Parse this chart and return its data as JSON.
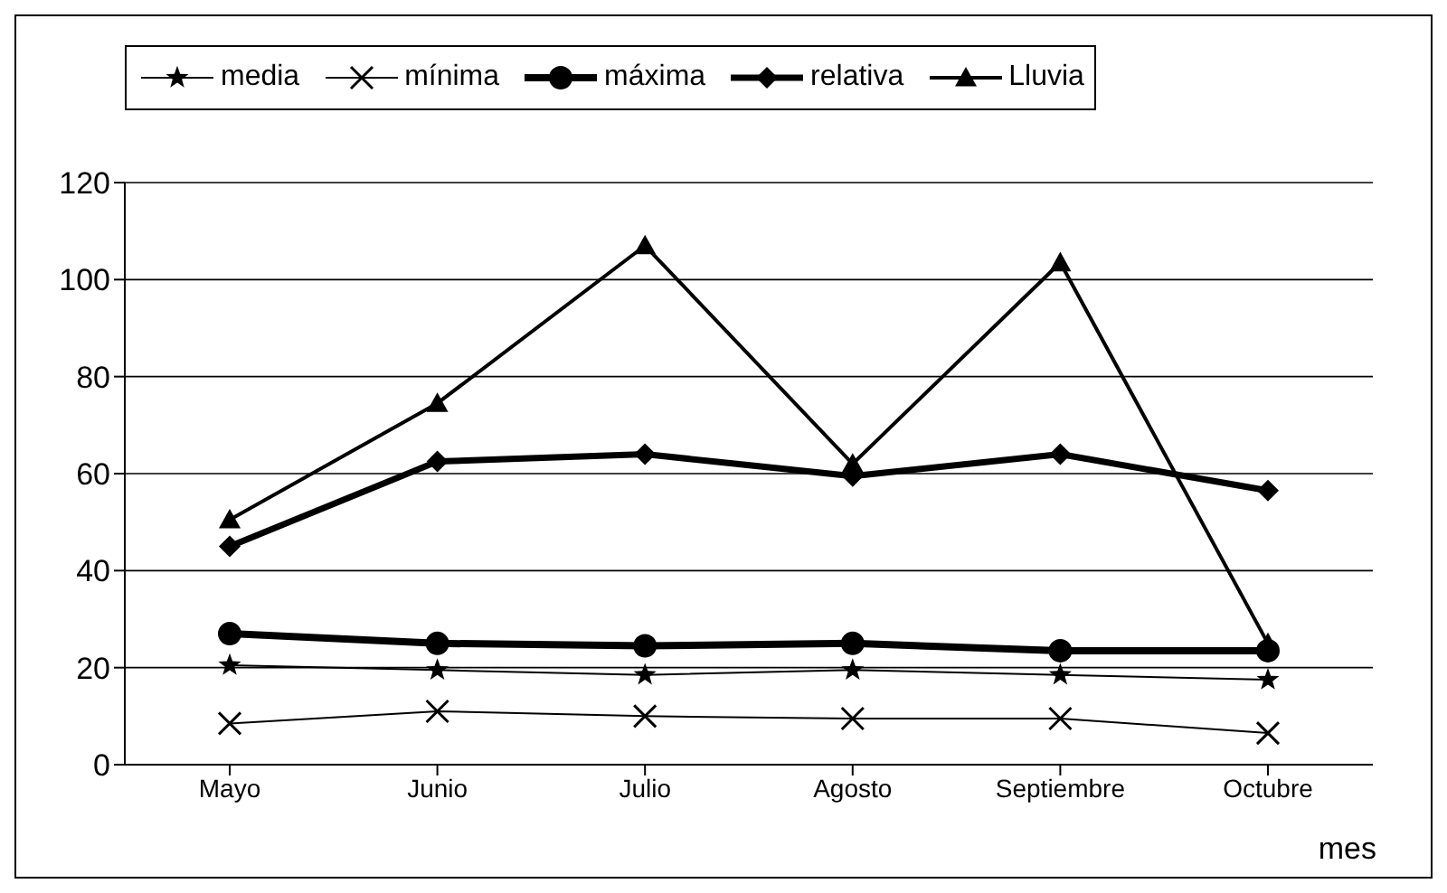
{
  "chart_data": {
    "type": "line",
    "xlabel": "mes",
    "categories": [
      "Mayo",
      "Junio",
      "Julio",
      "Agosto",
      "Septiembre",
      "Octubre"
    ],
    "series": [
      {
        "name": "media",
        "color": "#000000",
        "marker": "star",
        "values": [
          20.5,
          19.5,
          18.5,
          19.5,
          18.5,
          17.5
        ]
      },
      {
        "name": "mínima",
        "color": "#000000",
        "marker": "cross",
        "values": [
          8.5,
          11,
          10,
          9.5,
          9.5,
          6.5
        ]
      },
      {
        "name": "máxima",
        "color": "#000000",
        "marker": "circle",
        "values": [
          27,
          25,
          24.5,
          25,
          23.5,
          23.5
        ]
      },
      {
        "name": "relativa",
        "color": "#000000",
        "marker": "diamond",
        "values": [
          45,
          62.5,
          64,
          59.5,
          64,
          56.5
        ]
      },
      {
        "name": "Lluvia",
        "color": "#000000",
        "marker": "triangle",
        "values": [
          50.5,
          74.5,
          107,
          62,
          103.5,
          25
        ]
      }
    ],
    "ylim": [
      0,
      120
    ],
    "yticks": [
      0,
      20,
      40,
      60,
      80,
      100,
      120
    ],
    "grid": "y",
    "legend": "top"
  }
}
